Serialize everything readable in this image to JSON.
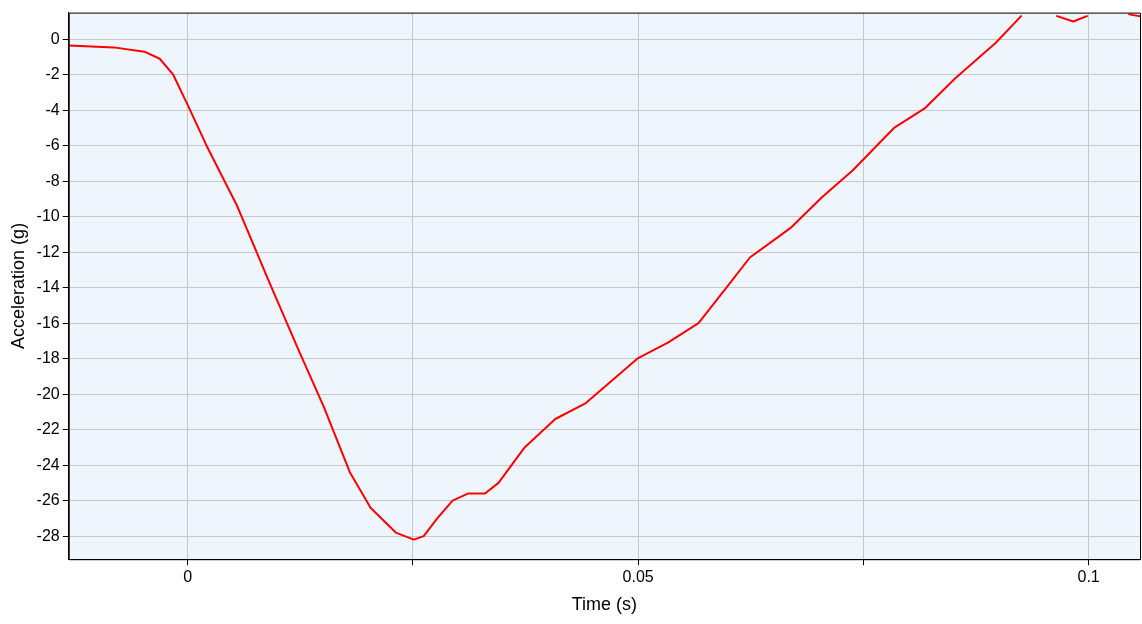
{
  "chart_data": {
    "type": "line",
    "xlabel": "Time (s)",
    "ylabel": "Acceleration (g)",
    "xlim": [
      -0.0132,
      0.1057
    ],
    "ylim": [
      -29.3,
      1.5
    ],
    "xticks": [
      0,
      {
        "value": 0.025,
        "label": null
      },
      0.05,
      {
        "value": 0.075,
        "label": null
      },
      0.1
    ],
    "yticks": [
      0,
      -2,
      -4,
      -6,
      -8,
      -10,
      -12,
      -14,
      -16,
      -18,
      -20,
      -22,
      -24,
      -26,
      -28
    ],
    "grid": true,
    "legend": false,
    "marker": "none",
    "line_style": "solid",
    "series": [
      {
        "color": "#ff0000",
        "x": [
          -0.0132,
          -0.0082,
          -0.0048,
          -0.0031,
          -0.0016,
          0,
          0.0021,
          0.0055,
          0.0089,
          0.0123,
          0.0151,
          0.018,
          0.0203,
          0.0231,
          0.0251,
          0.0262,
          0.0277,
          0.0294,
          0.0311,
          0.033,
          0.0345,
          0.0374,
          0.0408,
          0.0442,
          0.0499,
          0.0533,
          0.0567,
          0.0601,
          0.0624,
          0.067,
          0.0704,
          0.0738,
          0.0784,
          0.0818,
          0.0852,
          0.0897,
          0.0925,
          0.094,
          0.0965,
          0.0983,
          0.0998,
          0.102,
          0.1045,
          0.1057
        ],
        "values": [
          -0.35,
          -0.46,
          -0.7,
          -1.1,
          -2.0,
          -3.7,
          -6.0,
          -9.4,
          -13.5,
          -17.5,
          -20.7,
          -24.4,
          -26.4,
          -27.8,
          -28.2,
          -28.0,
          -27.0,
          -26.0,
          -25.6,
          -25.6,
          -25.0,
          -23.0,
          -21.4,
          -20.5,
          -18.0,
          -17.1,
          -16.0,
          -13.8,
          -12.3,
          -10.6,
          -8.9,
          -7.4,
          -5.0,
          -3.9,
          -2.2,
          -0.2,
          1.3,
          null,
          1.3,
          1.0,
          1.3,
          null,
          1.4,
          1.3
        ]
      }
    ]
  }
}
